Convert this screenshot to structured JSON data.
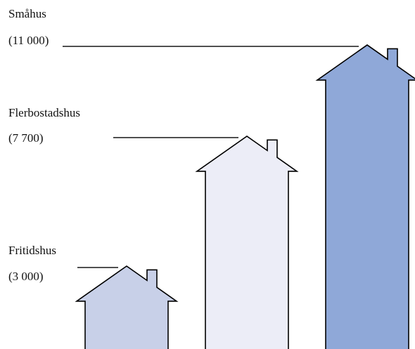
{
  "chart_data": {
    "type": "bar",
    "title": "",
    "xlabel": "",
    "ylabel": "",
    "categories": [
      "Fritidshus",
      "Flerbostadshus",
      "Småhus"
    ],
    "values": [
      3000,
      7700,
      11000
    ],
    "value_labels": [
      "(3 000)",
      "(7 700)",
      "(11 000)"
    ],
    "colors": [
      "#c8d0e8",
      "#ecedf7",
      "#8fa8d8"
    ],
    "outline_color": "#000000",
    "ylim": [
      0,
      11000
    ],
    "grid": false,
    "legend": "none",
    "mark_shape": "house"
  }
}
